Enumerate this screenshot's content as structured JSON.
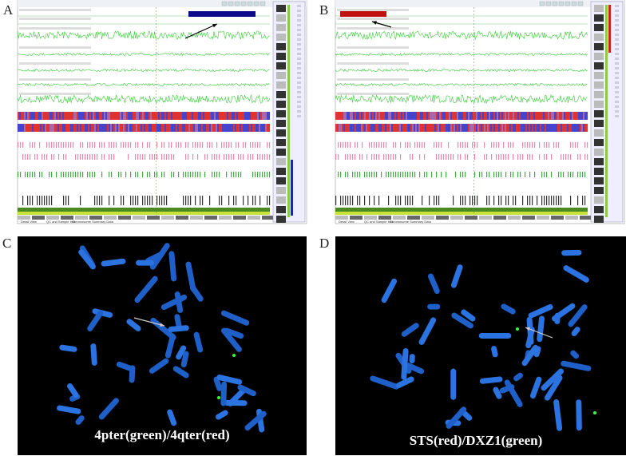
{
  "panels": [
    {
      "label": "A",
      "tabs": [
        "Detail View",
        "QC and Sample Info",
        "Chromosome Summary Data"
      ]
    },
    {
      "label": "B",
      "tabs": [
        "Detail View",
        "QC and Sample Info",
        "Chromosome Summary Data"
      ]
    },
    {
      "label": "C",
      "caption": "4pter(green)/4qter(red)"
    },
    {
      "label": "D",
      "caption": "STS(red)/DXZ1(green)"
    }
  ]
}
